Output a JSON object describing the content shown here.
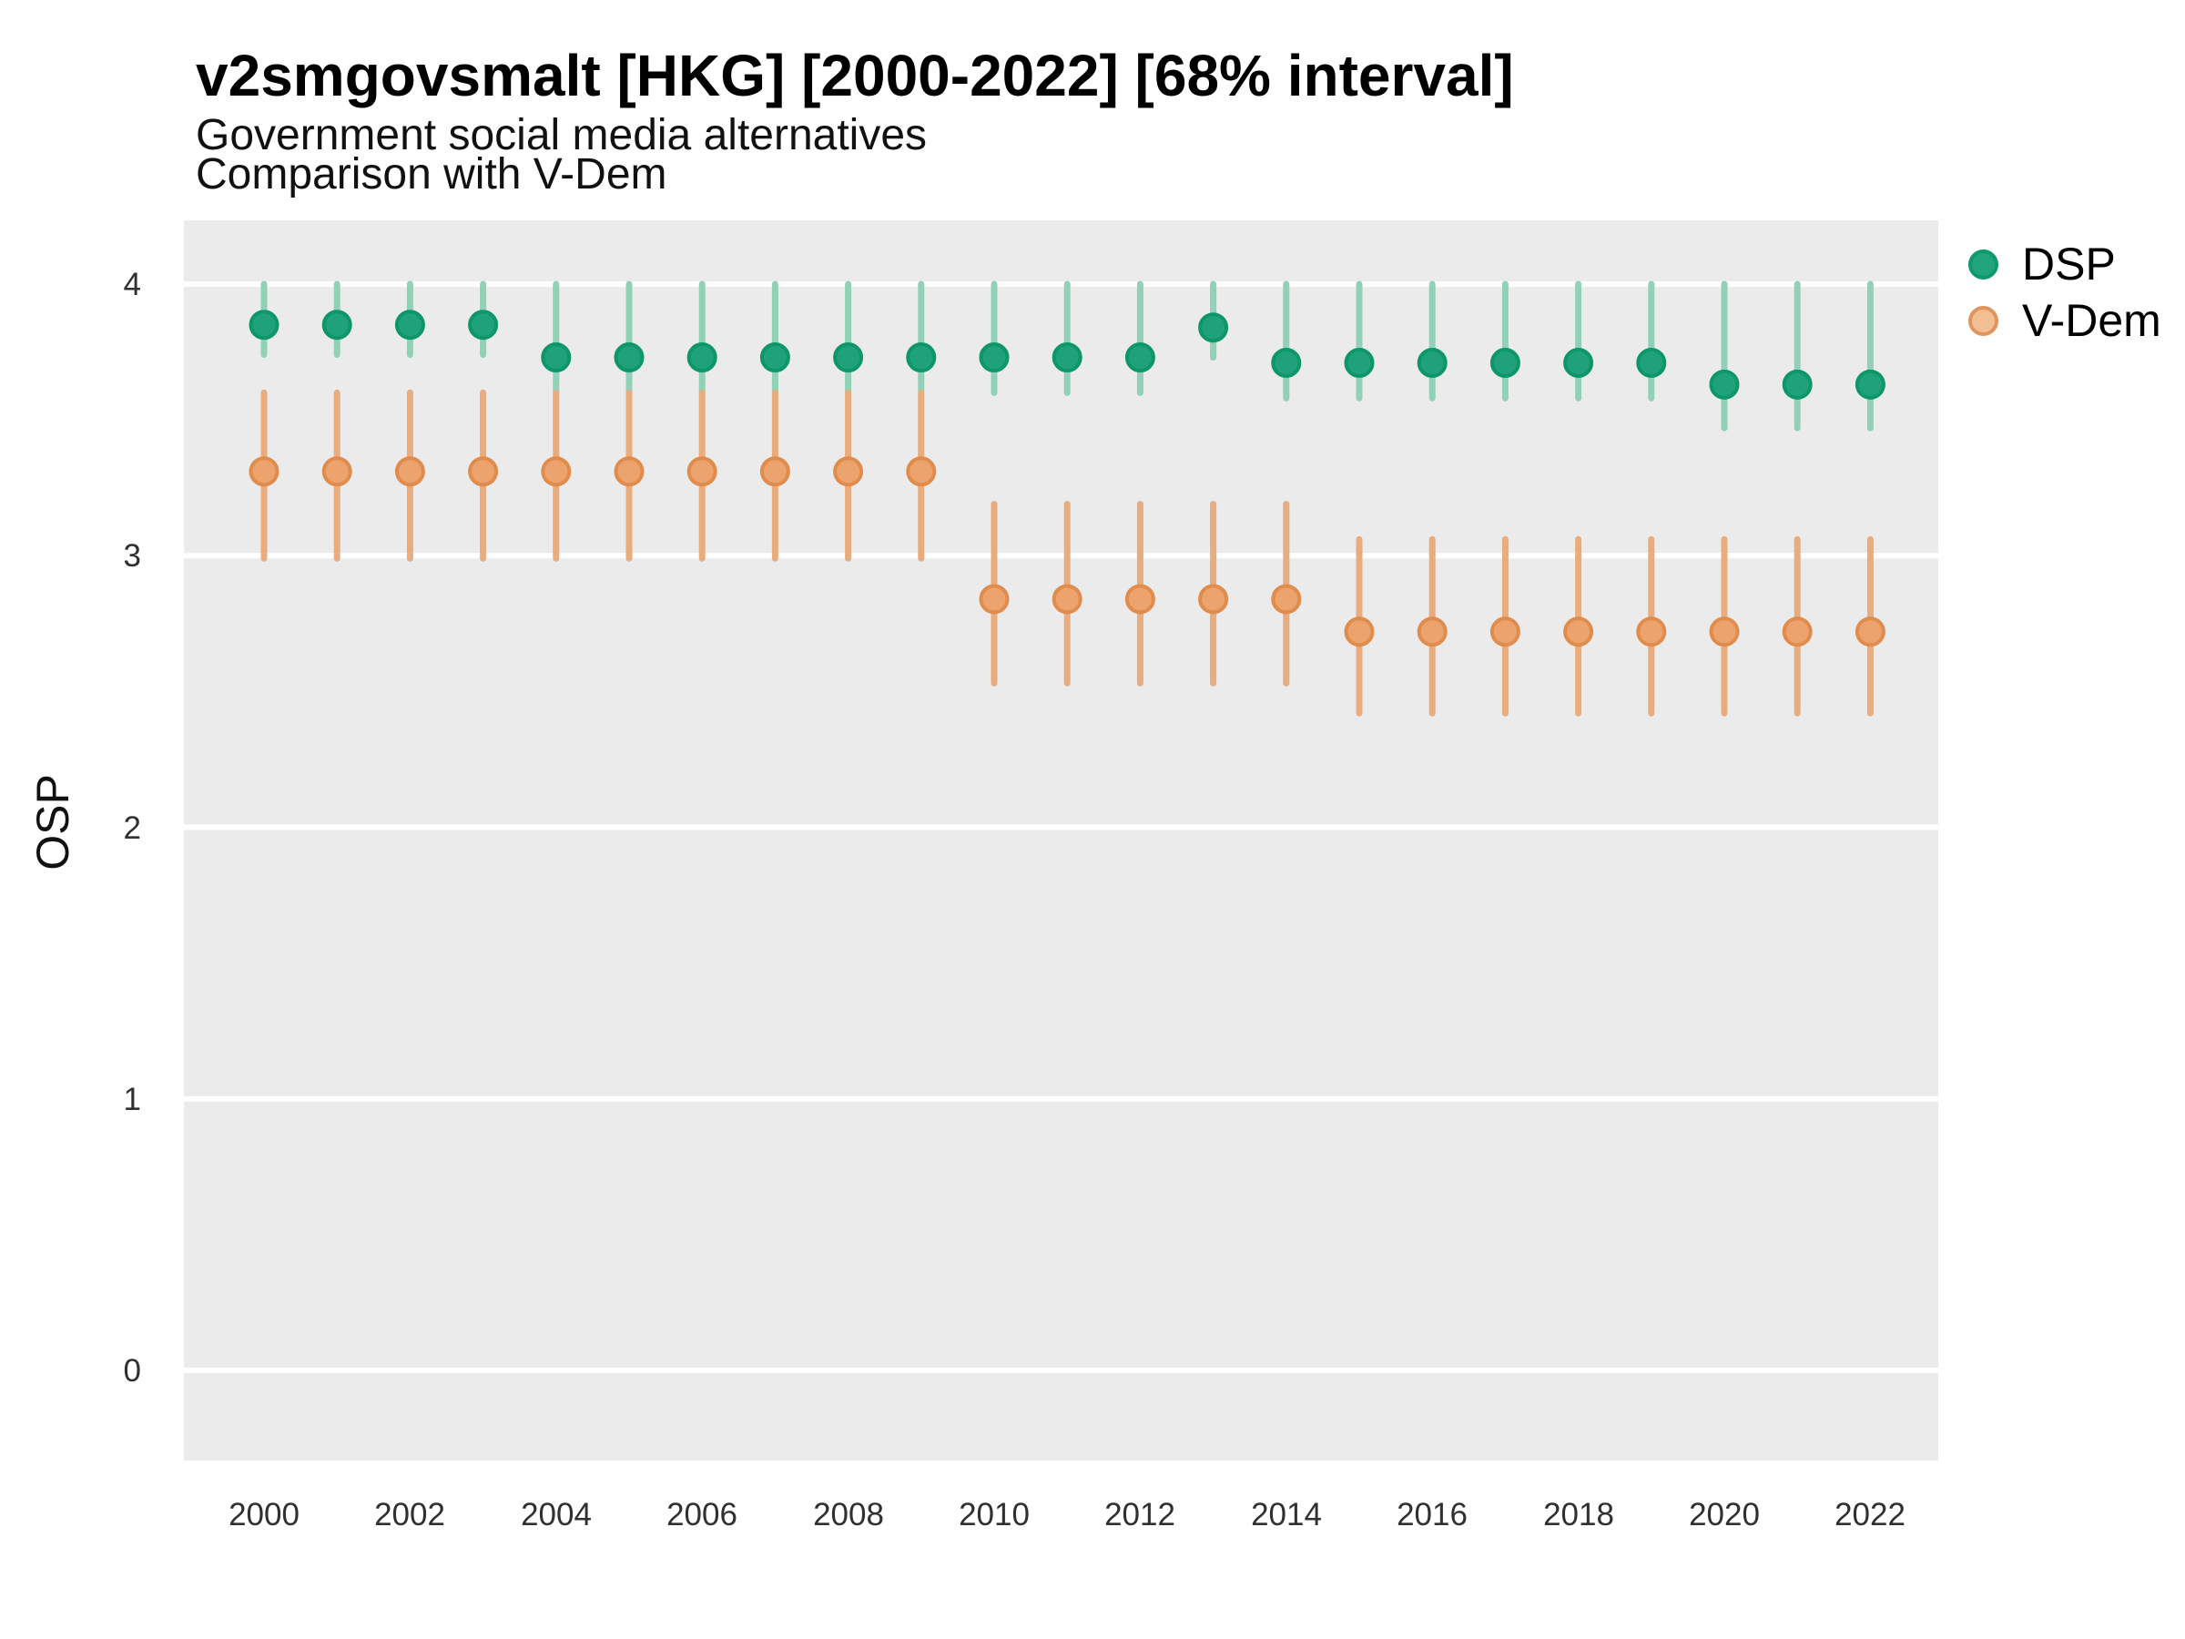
{
  "header": {
    "title": "v2smgovsmalt [HKG] [2000-2022] [68% interval]",
    "subtitle1": "Government social media alternatives",
    "subtitle2": "Comparison with V-Dem"
  },
  "axes": {
    "y_title": "OSP",
    "yticks": [
      4,
      3,
      2,
      1,
      0
    ],
    "xticks": [
      2000,
      2002,
      2004,
      2006,
      2008,
      2010,
      2012,
      2014,
      2016,
      2018,
      2020,
      2022
    ]
  },
  "legend": {
    "items": [
      {
        "label": "DSP",
        "fill": "#21A47B",
        "stroke": "#0E9A6C"
      },
      {
        "label": "V-Dem",
        "fill": "#F2BE93",
        "stroke": "#E1945C"
      }
    ]
  },
  "colors": {
    "panel_bg": "#EBEBEB",
    "grid": "#FFFFFF",
    "title_text": "#000000",
    "axis_text": "#303030"
  },
  "chart_data": {
    "type": "pointrange",
    "title": "v2smgovsmalt [HKG] [2000-2022] [68% interval]",
    "subtitle": "Government social media alternatives — Comparison with V-Dem",
    "interval": "68%",
    "xlabel": "",
    "ylabel": "OSP",
    "x": [
      2000,
      2001,
      2002,
      2003,
      2004,
      2005,
      2006,
      2007,
      2008,
      2009,
      2010,
      2011,
      2012,
      2013,
      2014,
      2015,
      2016,
      2017,
      2018,
      2019,
      2020,
      2021,
      2022
    ],
    "yticks": [
      0,
      1,
      2,
      3,
      4
    ],
    "ylim_display": [
      -0.33,
      4.23
    ],
    "grid": "horizontal-major-only",
    "legend_position": "top-right",
    "series": [
      {
        "name": "DSP",
        "point_fill": "#1FA27B",
        "point_stroke": "#0D9669",
        "line_color": "#90D1B7",
        "est": [
          3.85,
          3.85,
          3.85,
          3.85,
          3.73,
          3.73,
          3.73,
          3.73,
          3.73,
          3.73,
          3.73,
          3.73,
          3.73,
          3.84,
          3.71,
          3.71,
          3.71,
          3.71,
          3.71,
          3.71,
          3.63,
          3.63,
          3.63
        ],
        "lo": [
          3.74,
          3.74,
          3.74,
          3.74,
          3.6,
          3.6,
          3.6,
          3.6,
          3.6,
          3.6,
          3.6,
          3.6,
          3.6,
          3.73,
          3.58,
          3.58,
          3.58,
          3.58,
          3.58,
          3.58,
          3.47,
          3.47,
          3.47
        ],
        "hi": [
          4.0,
          4.0,
          4.0,
          4.0,
          4.0,
          4.0,
          4.0,
          4.0,
          4.0,
          4.0,
          4.0,
          4.0,
          4.0,
          4.0,
          4.0,
          4.0,
          4.0,
          4.0,
          4.0,
          4.0,
          4.0,
          4.0,
          4.0
        ]
      },
      {
        "name": "V-Dem",
        "point_fill": "#ECA36E",
        "point_stroke": "#E08C4D",
        "line_color": "#E8AC7E",
        "est": [
          3.31,
          3.31,
          3.31,
          3.31,
          3.31,
          3.31,
          3.31,
          3.31,
          3.31,
          3.31,
          2.84,
          2.84,
          2.84,
          2.84,
          2.84,
          2.72,
          2.72,
          2.72,
          2.72,
          2.72,
          2.72,
          2.72,
          2.72
        ],
        "lo": [
          2.99,
          2.99,
          2.99,
          2.99,
          2.99,
          2.99,
          2.99,
          2.99,
          2.99,
          2.99,
          2.53,
          2.53,
          2.53,
          2.53,
          2.53,
          2.42,
          2.42,
          2.42,
          2.42,
          2.42,
          2.42,
          2.42,
          2.42
        ],
        "hi": [
          3.6,
          3.6,
          3.6,
          3.6,
          3.6,
          3.6,
          3.6,
          3.6,
          3.6,
          3.6,
          3.19,
          3.19,
          3.19,
          3.19,
          3.19,
          3.06,
          3.06,
          3.06,
          3.06,
          3.06,
          3.06,
          3.06,
          3.06
        ]
      }
    ]
  }
}
